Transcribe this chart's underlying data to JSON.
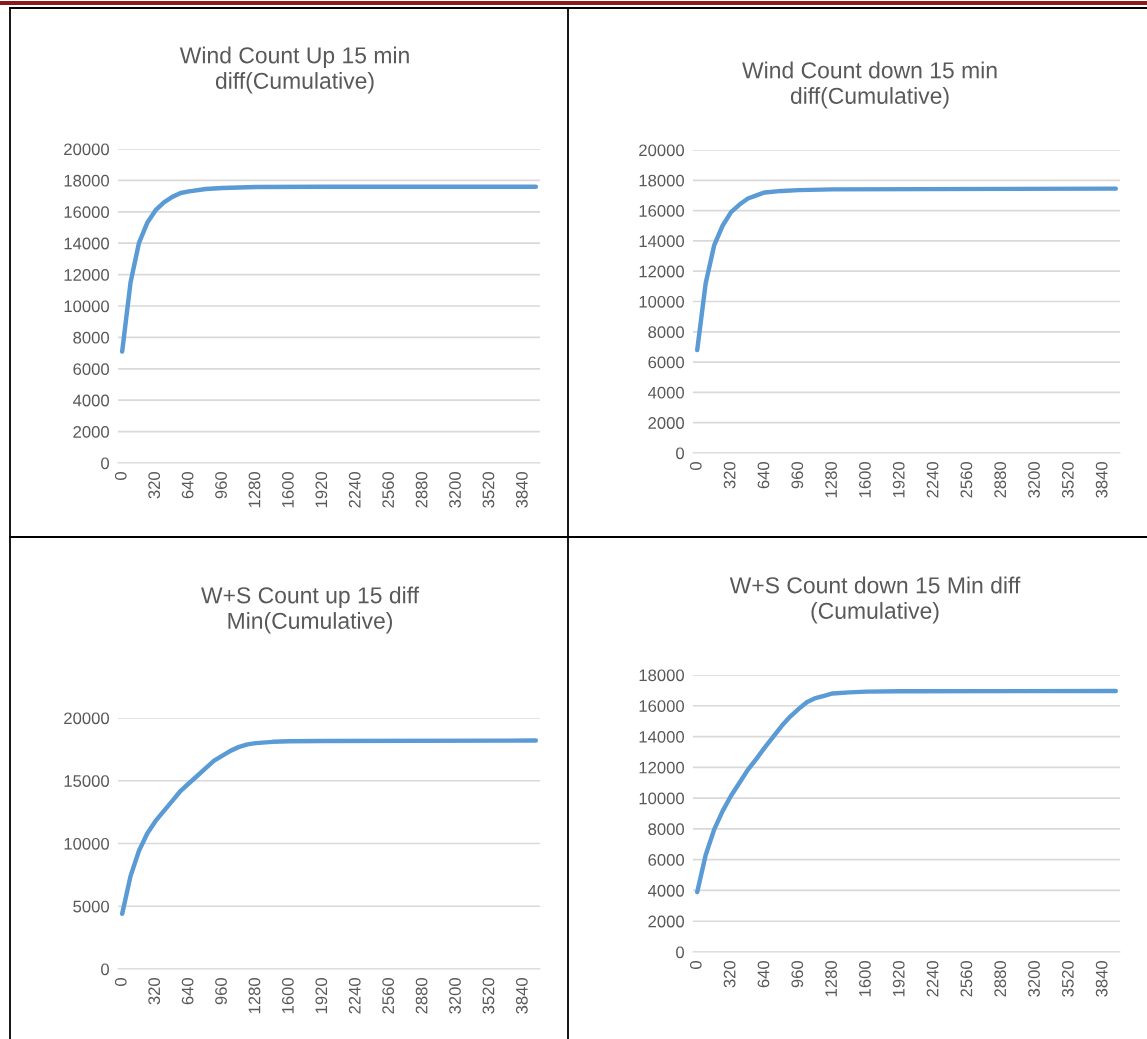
{
  "chart_data": [
    {
      "type": "line",
      "title": "Wind Count Up 15 min\ndiff(Cumulative)",
      "color": "#5b9bd5",
      "grid": "y",
      "xlim": [
        -40,
        4000
      ],
      "xticks": [
        0,
        320,
        640,
        960,
        1280,
        1600,
        1920,
        2240,
        2560,
        2880,
        3200,
        3520,
        3840
      ],
      "ylim": [
        0,
        20000
      ],
      "yticks": [
        0,
        2000,
        4000,
        6000,
        8000,
        10000,
        12000,
        14000,
        16000,
        18000,
        20000
      ],
      "x": [
        0,
        80,
        160,
        240,
        320,
        400,
        480,
        560,
        640,
        800,
        960,
        1280,
        1920,
        3960
      ],
      "values": [
        7100,
        11500,
        14000,
        15300,
        16100,
        16600,
        16950,
        17200,
        17300,
        17450,
        17520,
        17580,
        17600,
        17600
      ]
    },
    {
      "type": "line",
      "title": "Wind Count down 15 min\ndiff(Cumulative)",
      "color": "#5b9bd5",
      "grid": "y",
      "xlim": [
        -40,
        4000
      ],
      "xticks": [
        0,
        320,
        640,
        960,
        1280,
        1600,
        1920,
        2240,
        2560,
        2880,
        3200,
        3520,
        3840
      ],
      "ylim": [
        0,
        20000
      ],
      "yticks": [
        0,
        2000,
        4000,
        6000,
        8000,
        10000,
        12000,
        14000,
        16000,
        18000,
        20000
      ],
      "x": [
        0,
        80,
        160,
        240,
        320,
        400,
        480,
        560,
        640,
        800,
        960,
        1280,
        3960
      ],
      "values": [
        6800,
        11200,
        13700,
        15000,
        15900,
        16400,
        16800,
        17000,
        17200,
        17300,
        17350,
        17400,
        17450
      ]
    },
    {
      "type": "line",
      "title": "W+S Count up 15 diff\nMin(Cumulative)",
      "color": "#5b9bd5",
      "grid": "y",
      "xlim": [
        -40,
        4000
      ],
      "xticks": [
        0,
        320,
        640,
        960,
        1280,
        1600,
        1920,
        2240,
        2560,
        2880,
        3200,
        3520,
        3840
      ],
      "ylim": [
        0,
        20000
      ],
      "yticks": [
        0,
        5000,
        10000,
        15000,
        20000
      ],
      "x": [
        0,
        80,
        160,
        240,
        320,
        400,
        480,
        560,
        640,
        720,
        800,
        880,
        960,
        1040,
        1120,
        1200,
        1280,
        1440,
        1600,
        1920,
        3960
      ],
      "values": [
        4400,
        7400,
        9400,
        10800,
        11800,
        12600,
        13400,
        14200,
        14800,
        15400,
        16000,
        16600,
        17000,
        17400,
        17700,
        17900,
        18000,
        18100,
        18150,
        18170,
        18200
      ]
    },
    {
      "type": "line",
      "title": "W+S Count down 15 Min diff\n(Cumulative)",
      "color": "#5b9bd5",
      "grid": "y",
      "xlim": [
        -40,
        4000
      ],
      "xticks": [
        0,
        320,
        640,
        960,
        1280,
        1600,
        1920,
        2240,
        2560,
        2880,
        3200,
        3520,
        3840
      ],
      "ylim": [
        0,
        18000
      ],
      "yticks": [
        0,
        2000,
        4000,
        6000,
        8000,
        10000,
        12000,
        14000,
        16000,
        18000
      ],
      "x": [
        0,
        80,
        160,
        240,
        320,
        400,
        480,
        560,
        640,
        720,
        800,
        880,
        960,
        1040,
        1120,
        1200,
        1280,
        1440,
        1600,
        1920,
        3960
      ],
      "values": [
        3900,
        6300,
        7950,
        9150,
        10150,
        11000,
        11850,
        12550,
        13300,
        14000,
        14700,
        15300,
        15800,
        16250,
        16500,
        16650,
        16800,
        16870,
        16920,
        16940,
        16960
      ]
    }
  ]
}
